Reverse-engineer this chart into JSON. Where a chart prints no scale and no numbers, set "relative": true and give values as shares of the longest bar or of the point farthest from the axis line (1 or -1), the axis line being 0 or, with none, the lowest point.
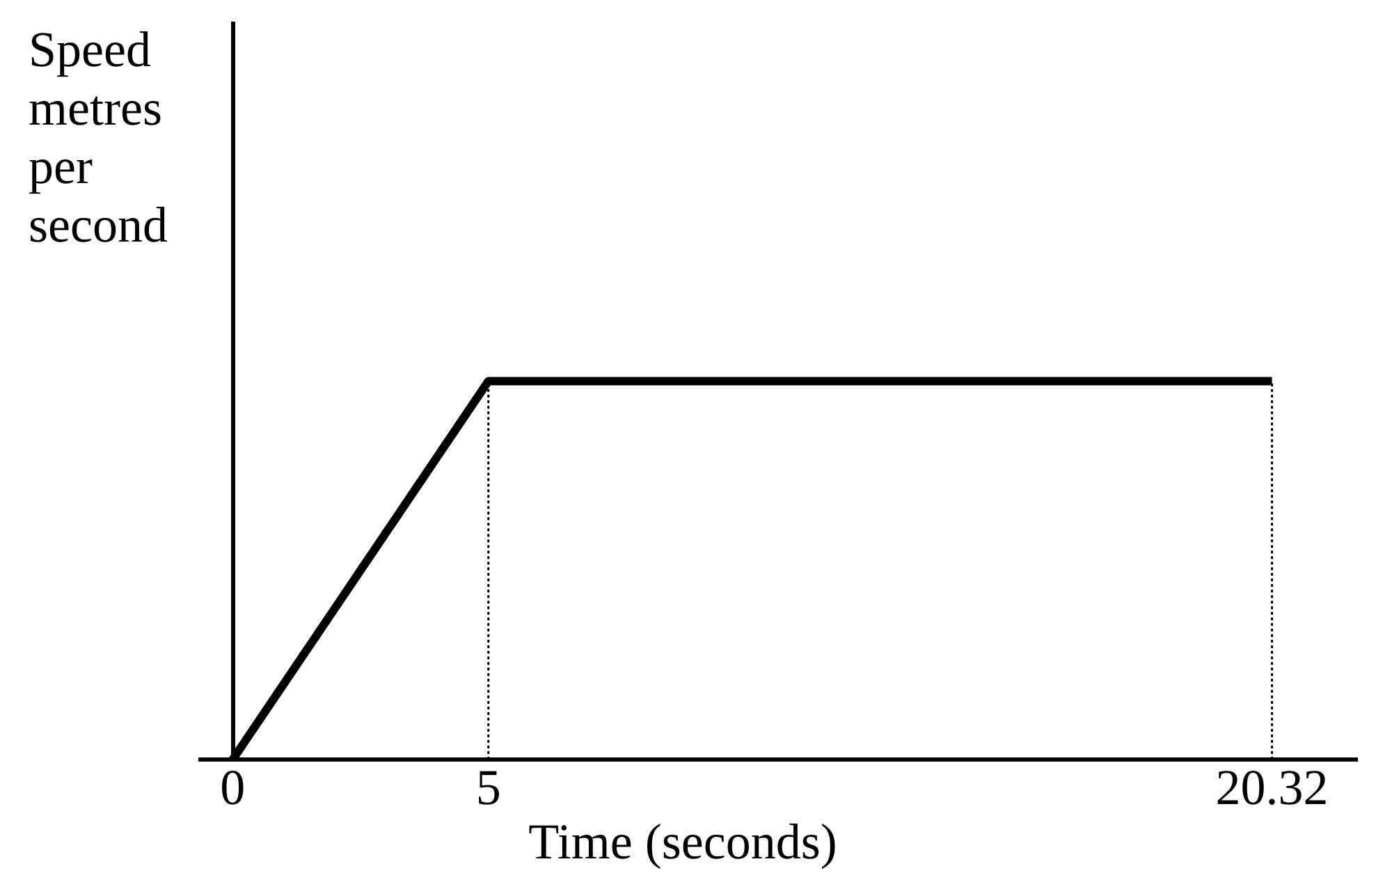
{
  "chart_data": {
    "type": "line",
    "relative": true,
    "xlabel": "Time (seconds)",
    "ylabel": "Speed metres per second",
    "xlim": [
      0,
      22
    ],
    "xticks": [
      0,
      5,
      20.32
    ],
    "tick_labels": "x",
    "grid": false,
    "marker": "none",
    "line_style": "solid",
    "series": [
      {
        "color": "#000000",
        "x": [
          0,
          5,
          20.32
        ],
        "values": [
          0,
          1,
          1
        ]
      }
    ],
    "ref_lines": [
      {
        "axis": "x",
        "value": 5,
        "line_style": "dotted",
        "color": "#000000"
      },
      {
        "axis": "x",
        "value": 20.32,
        "line_style": "dotted",
        "color": "#000000"
      }
    ]
  }
}
